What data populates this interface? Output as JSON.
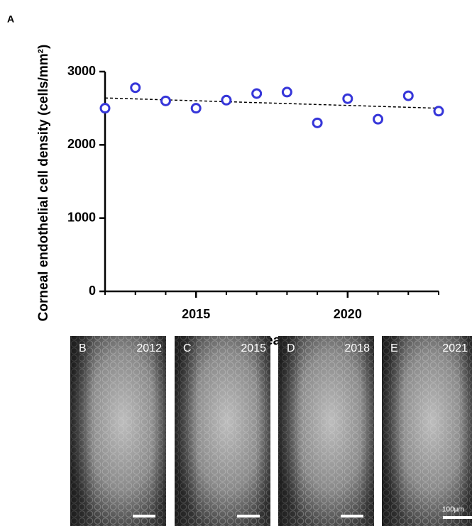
{
  "panel_label": "A",
  "chart_data": {
    "type": "scatter",
    "x": [
      2012,
      2013,
      2014,
      2015,
      2016,
      2017,
      2018,
      2019,
      2020,
      2021,
      2022,
      2023
    ],
    "values": [
      2500,
      2780,
      2600,
      2500,
      2610,
      2700,
      2720,
      2300,
      2630,
      2350,
      2670,
      2460
    ],
    "color": "#3636d9",
    "trendline": {
      "x": [
        2012,
        2023
      ],
      "values": [
        2640,
        2500
      ],
      "style": "dashed"
    },
    "xlim": [
      2012,
      2023
    ],
    "xticks": [
      2015,
      2020
    ],
    "xminorticks": [
      2012,
      2013,
      2014,
      2015,
      2016,
      2017,
      2018,
      2019,
      2020,
      2021,
      2022,
      2023
    ],
    "ylim": [
      0,
      3000
    ],
    "yticks": [
      0,
      1000,
      2000,
      3000
    ],
    "x_label": "year",
    "y_label": "Corneal endothelial cell density (cells/mm²)",
    "grid": false
  },
  "images": [
    {
      "label": "B",
      "year": "2012"
    },
    {
      "label": "C",
      "year": "2015"
    },
    {
      "label": "D",
      "year": "2018"
    },
    {
      "label": "E",
      "year": "2021"
    }
  ],
  "scale_bar_label": "100μm"
}
